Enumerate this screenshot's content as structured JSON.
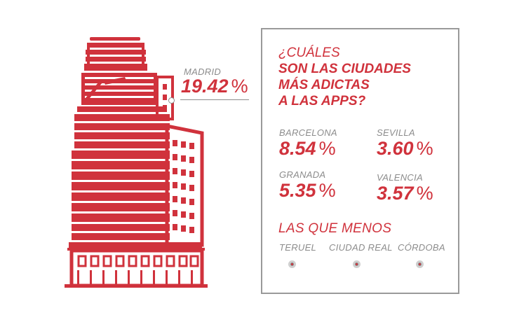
{
  "colors": {
    "accent": "#d0323c",
    "gray": "#8c8c8c",
    "border": "#9a9a9a"
  },
  "illustration": {
    "icon": "building-icon"
  },
  "callout": {
    "city": "MADRID",
    "value": "19.42",
    "unit": "%"
  },
  "panel": {
    "question_line1": "¿CUÁLES",
    "question_line2": "SON LAS CIUDADES",
    "question_line3": "MÁS ADICTAS",
    "question_line4": "A LAS APPS?",
    "cities": [
      {
        "name": "BARCELONA",
        "value": "8.54",
        "unit": "%"
      },
      {
        "name": "SEVILLA",
        "value": "3.60",
        "unit": "%"
      },
      {
        "name": "GRANADA",
        "value": "5.35",
        "unit": "%"
      },
      {
        "name": "VALENCIA",
        "value": "3.57",
        "unit": "%"
      }
    ],
    "least_title": "LAS QUE MENOS",
    "least": [
      "TERUEL",
      "CIUDAD REAL",
      "CÓRDOBA"
    ]
  }
}
